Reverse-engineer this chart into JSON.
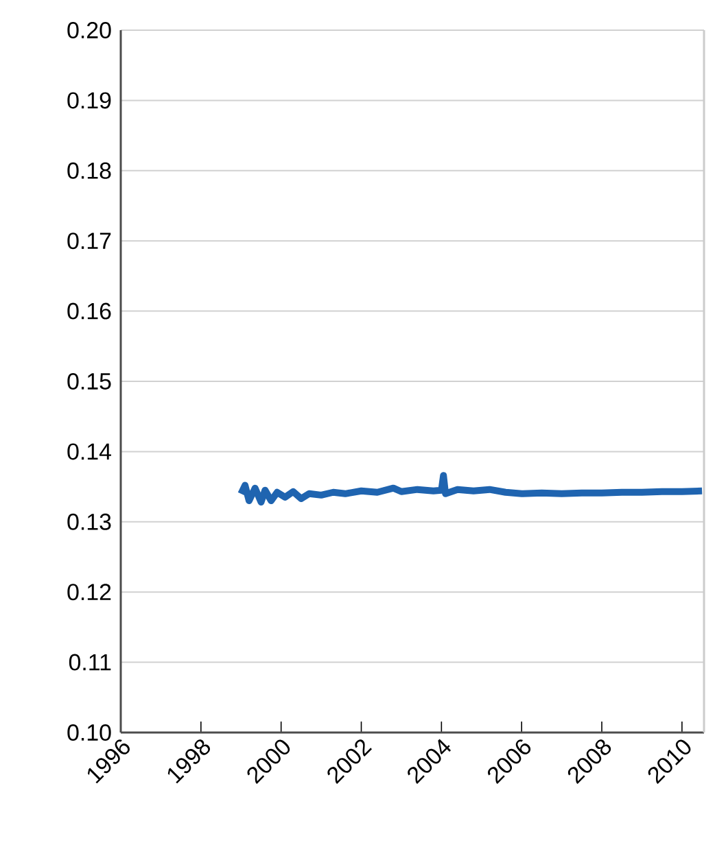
{
  "chart_data": {
    "type": "line",
    "color": "#1f64b0",
    "x": [
      1999.0,
      1999.1,
      1999.2,
      1999.35,
      1999.5,
      1999.6,
      1999.75,
      1999.9,
      2000.1,
      2000.3,
      2000.5,
      2000.7,
      2001.0,
      2001.3,
      2001.6,
      2002.0,
      2002.4,
      2002.8,
      2003.0,
      2003.4,
      2003.8,
      2004.0,
      2004.05,
      2004.1,
      2004.4,
      2004.8,
      2005.2,
      2005.6,
      2006.0,
      2006.5,
      2007.0,
      2007.5,
      2008.0,
      2008.5,
      2009.0,
      2009.5,
      2010.0,
      2010.5
    ],
    "values": [
      0.134,
      0.1352,
      0.133,
      0.1348,
      0.1328,
      0.1345,
      0.133,
      0.1342,
      0.1335,
      0.1343,
      0.1333,
      0.134,
      0.1338,
      0.1342,
      0.134,
      0.1344,
      0.1342,
      0.1348,
      0.1343,
      0.1346,
      0.1344,
      0.1345,
      0.1366,
      0.134,
      0.1346,
      0.1344,
      0.1346,
      0.1342,
      0.134,
      0.1341,
      0.134,
      0.1341,
      0.1341,
      0.1342,
      0.1342,
      0.1343,
      0.1343,
      0.1344
    ],
    "xlim": [
      1996,
      2010.55
    ],
    "xticks": [
      1996,
      1998,
      2000,
      2002,
      2004,
      2006,
      2008,
      2010
    ],
    "ylim": [
      0.1,
      0.2
    ],
    "yticks": [
      {
        "value": 0.1,
        "label": "0.10"
      },
      {
        "value": 0.11,
        "label": "0.11"
      },
      {
        "value": 0.12,
        "label": "0.12"
      },
      {
        "value": 0.13,
        "label": "0.13"
      },
      {
        "value": 0.14,
        "label": "0.14"
      },
      {
        "value": 0.15,
        "label": "0.15"
      },
      {
        "value": 0.16,
        "label": "0.16"
      },
      {
        "value": 0.17,
        "label": "0.17"
      },
      {
        "value": 0.18,
        "label": "0.18"
      },
      {
        "value": 0.19,
        "label": "0.19"
      },
      {
        "value": 0.2,
        "label": "0.20"
      }
    ],
    "grid": "y"
  }
}
